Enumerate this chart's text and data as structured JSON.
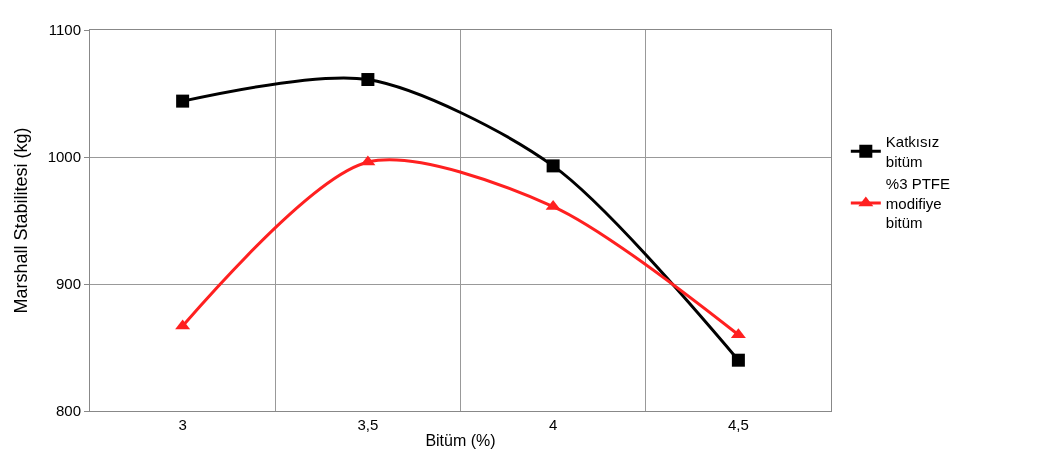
{
  "chart_data": {
    "type": "line",
    "xlabel": "Bitüm (%)",
    "ylabel": "Marshall Stabilitesi (kg)",
    "categories": [
      "3",
      "3,5",
      "4",
      "4,5"
    ],
    "series": [
      {
        "name": "Katkısız bitüm",
        "color": "#000000",
        "marker": "square",
        "values": [
          1044,
          1061,
          993,
          840
        ]
      },
      {
        "name": "%3 PTFE modifiye bitüm",
        "color": "#ff2020",
        "marker": "triangle",
        "values": [
          867,
          996,
          961,
          860
        ]
      }
    ],
    "ylim": [
      800,
      1100
    ],
    "yticks": [
      800,
      900,
      1000,
      1100
    ],
    "grid": true,
    "legend": "right"
  }
}
